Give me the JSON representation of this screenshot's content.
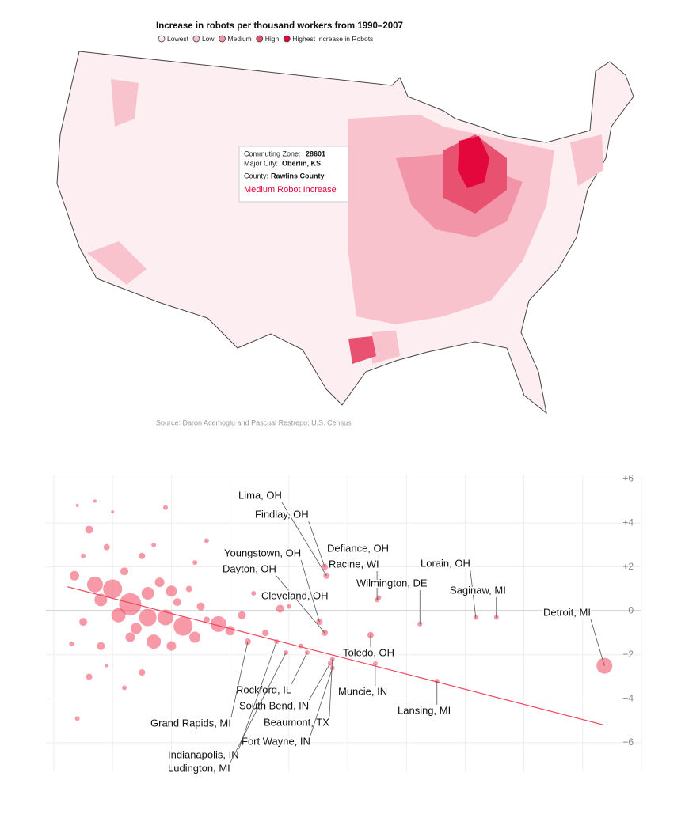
{
  "map": {
    "title": "Increase in robots per thousand workers from 1990–2007",
    "legend": [
      {
        "label": "Lowest",
        "color": "#fde8ec"
      },
      {
        "label": "Low",
        "color": "#f8c3cd"
      },
      {
        "label": "Medium",
        "color": "#f295a8"
      },
      {
        "label": "High",
        "color": "#e8516f"
      },
      {
        "label": "Highest Increase in Robots",
        "color": "#e3073c"
      }
    ],
    "tooltip": {
      "zone_label": "Commuting Zone:",
      "zone": "28601",
      "city_label": "Major City:",
      "city": "Oberlin, KS",
      "county_label": "County:",
      "county": "Rawlins County",
      "category": "Medium Robot Increase"
    },
    "source": "Source: Daron Acemoglu and Pascual Restrepo; U.S. Census"
  },
  "chart_data": {
    "type": "scatter",
    "color": "#f0465f",
    "xlim": [
      0,
      100
    ],
    "xticks": [
      0,
      10,
      20,
      30,
      40,
      50,
      60,
      70,
      80,
      90,
      100
    ],
    "ylim": [
      -7.3,
      6.2
    ],
    "yticks": [
      {
        "value": 6,
        "label": "+6"
      },
      {
        "value": 4,
        "label": "+4"
      },
      {
        "value": 2,
        "label": "+2"
      },
      0,
      {
        "value": -2,
        "label": "−2"
      },
      {
        "value": -4,
        "label": "−4"
      },
      {
        "value": -6,
        "label": "−6"
      }
    ],
    "grid": true,
    "x": [
      46.4,
      46.1,
      45.2,
      46.1,
      38.5,
      55.3,
      55.0,
      62.3,
      71.8,
      75.3,
      93.7,
      53.9,
      54.7,
      65.2,
      43.1,
      47.0,
      47.4,
      47.4,
      33.0,
      37.9,
      39.5,
      3.5,
      5,
      4,
      6,
      7,
      8,
      9,
      10,
      11,
      12,
      13,
      14,
      15,
      16,
      17,
      18,
      19,
      20,
      21,
      22,
      23,
      24,
      25,
      26,
      28,
      30,
      32,
      34,
      26,
      6,
      4,
      3,
      9,
      12,
      15,
      7,
      10,
      19,
      24,
      17,
      5,
      8,
      13,
      16,
      20,
      36,
      40,
      42
    ],
    "y": [
      1.6,
      2.0,
      -0.5,
      -1.0,
      0.1,
      0.6,
      0.5,
      -0.6,
      -0.3,
      -0.3,
      -2.5,
      -1.1,
      -2.4,
      -3.2,
      -1.9,
      -2.4,
      -2.2,
      -2.6,
      -1.4,
      -1.4,
      -1.9,
      1.6,
      2.5,
      4.8,
      3.7,
      1.2,
      0.5,
      2.9,
      1.0,
      -0.2,
      1.8,
      0.3,
      -0.8,
      2.5,
      0.8,
      -1.4,
      1.3,
      -0.3,
      -1.6,
      0.4,
      -0.7,
      1.0,
      -1.2,
      0.2,
      -0.4,
      -0.6,
      -0.9,
      -0.2,
      0.8,
      3.2,
      -3.0,
      -4.9,
      -1.5,
      -2.5,
      -3.5,
      -2.8,
      5.0,
      4.5,
      4.7,
      2.2,
      3.0,
      -0.5,
      -1.6,
      -1.2,
      -0.3,
      0.9,
      -1.0,
      0.2,
      -1.6
    ],
    "sizes": [
      4,
      4,
      4,
      4,
      5,
      3,
      3,
      3,
      3,
      3,
      10,
      4,
      3,
      3,
      3,
      3,
      3,
      3,
      4,
      3,
      3,
      6,
      3,
      2,
      5,
      10,
      8,
      4,
      12,
      9,
      5,
      14,
      7,
      4,
      8,
      9,
      6,
      10,
      6,
      5,
      12,
      4,
      7,
      5,
      4,
      10,
      6,
      5,
      3,
      3,
      4,
      3,
      3,
      2,
      3,
      4,
      2,
      2,
      3,
      3,
      3,
      5,
      5,
      6,
      11,
      7,
      4,
      3,
      3
    ],
    "labels": [
      "Lima, OH",
      "Findlay, OH",
      "Youngstown, OH",
      "Dayton, OH",
      "Cleveland, OH",
      "Defiance, OH",
      "Racine, WI",
      "Wilmington, DE",
      "Lorain, OH",
      "Saginaw, MI",
      "Detroit, MI",
      "Toledo, OH",
      "Muncie, IN",
      "Lansing, MI",
      "Rockford, IL",
      "South Bend, IN",
      "Beaumont, TX",
      "Fort Wayne, IN",
      "Grand Rapids, MI",
      "Indianapolis, IN",
      "Ludington, MI",
      null,
      null,
      null,
      null,
      null,
      null,
      null,
      null,
      null,
      null,
      null,
      null,
      null,
      null,
      null,
      null,
      null,
      null,
      null,
      null,
      null,
      null,
      null,
      null,
      null,
      null,
      null,
      null,
      null,
      null,
      null,
      null,
      null,
      null,
      null,
      null,
      null,
      null,
      null,
      null,
      null,
      null,
      null,
      null,
      null,
      null,
      null,
      null
    ],
    "trendline": {
      "x": [
        2.3,
        93.7
      ],
      "y": [
        1.1,
        -5.2
      ],
      "color": "#f0465f"
    }
  }
}
